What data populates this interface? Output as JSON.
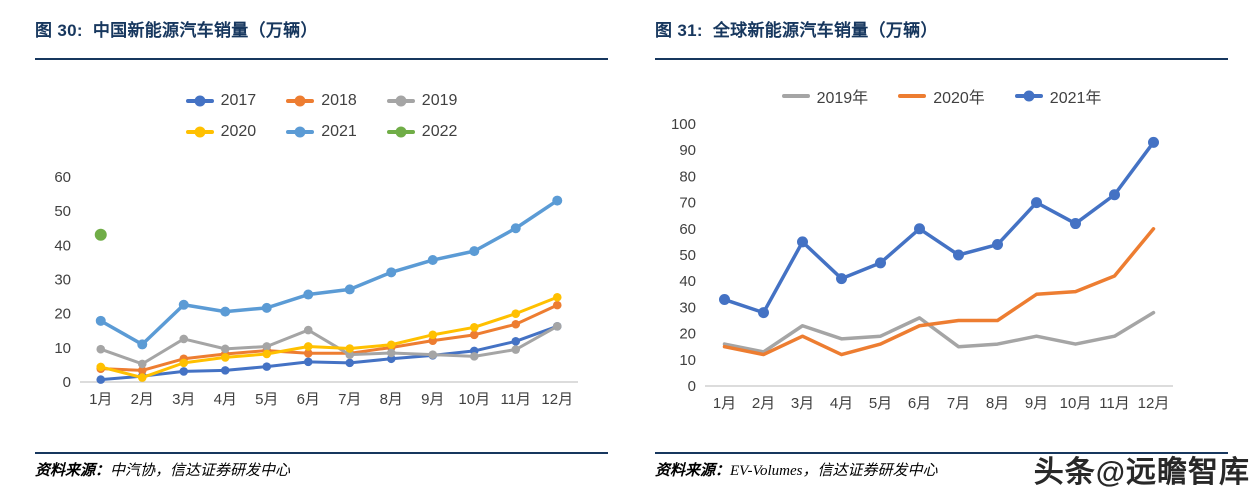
{
  "panels": [
    {
      "title": "图 30:  中国新能源汽车销量（万辆）",
      "source_prefix": "资料来源：",
      "source_text": "中汽协，信达证券研发中心"
    },
    {
      "title": "图 31:  全球新能源汽车销量（万辆）",
      "source_prefix": "资料来源：",
      "source_text": "EV-Volumes，信达证券研发中心"
    }
  ],
  "watermark": "头条@远瞻智库",
  "colors": {
    "title_navy": "#17375E",
    "axis_gray": "#C6C6C6",
    "tick_text": "#404040"
  },
  "chart_data": [
    {
      "type": "line",
      "title": "中国新能源汽车销量（万辆）",
      "categories": [
        "1月",
        "2月",
        "3月",
        "4月",
        "5月",
        "6月",
        "7月",
        "8月",
        "9月",
        "10月",
        "11月",
        "12月"
      ],
      "ylim": [
        0,
        60
      ],
      "ytick_step": 10,
      "grid": false,
      "legend_position": "top",
      "series": [
        {
          "name": "2017",
          "color": "#4472C4",
          "marker": true,
          "values": [
            0.7,
            1.7,
            3.1,
            3.4,
            4.5,
            5.9,
            5.6,
            6.8,
            7.8,
            9.1,
            11.9,
            16.3
          ]
        },
        {
          "name": "2018",
          "color": "#ED7D31",
          "marker": true,
          "values": [
            3.9,
            3.4,
            6.8,
            8.2,
            9.2,
            8.4,
            8.4,
            10.1,
            12.1,
            13.8,
            16.9,
            22.5
          ]
        },
        {
          "name": "2019",
          "color": "#A5A5A5",
          "marker": true,
          "values": [
            9.6,
            5.3,
            12.6,
            9.7,
            10.4,
            15.2,
            8.0,
            8.5,
            8.0,
            7.5,
            9.5,
            16.3
          ]
        },
        {
          "name": "2020",
          "color": "#FFC000",
          "marker": true,
          "values": [
            4.4,
            1.3,
            5.6,
            7.2,
            8.2,
            10.4,
            9.8,
            10.9,
            13.8,
            16.0,
            20.0,
            24.8
          ]
        },
        {
          "name": "2021",
          "color": "#5B9BD5",
          "marker": true,
          "line_width": 3.5,
          "marker_size": 5,
          "values": [
            17.9,
            11.0,
            22.6,
            20.6,
            21.7,
            25.6,
            27.1,
            32.1,
            35.7,
            38.3,
            45.0,
            53.1
          ]
        },
        {
          "name": "2022",
          "color": "#70AD47",
          "marker": true,
          "marker_size": 6,
          "values": [
            43.1,
            null,
            null,
            null,
            null,
            null,
            null,
            null,
            null,
            null,
            null,
            null
          ]
        }
      ]
    },
    {
      "type": "line",
      "title": "全球新能源汽车销量（万辆）",
      "categories": [
        "1月",
        "2月",
        "3月",
        "4月",
        "5月",
        "6月",
        "7月",
        "8月",
        "9月",
        "10月",
        "11月",
        "12月"
      ],
      "ylim": [
        0,
        100
      ],
      "ytick_step": 10,
      "grid": false,
      "legend_position": "top",
      "series": [
        {
          "name": "2019年",
          "color": "#A5A5A5",
          "marker": false,
          "values": [
            16,
            13,
            23,
            18,
            19,
            26,
            15,
            16,
            19,
            16,
            19,
            28
          ]
        },
        {
          "name": "2020年",
          "color": "#ED7D31",
          "marker": false,
          "values": [
            15,
            12,
            19,
            12,
            16,
            23,
            25,
            25,
            35,
            36,
            42,
            60
          ]
        },
        {
          "name": "2021年",
          "color": "#4472C4",
          "marker": true,
          "marker_size": 5.5,
          "values": [
            33,
            28,
            55,
            41,
            47,
            60,
            50,
            54,
            70,
            62,
            73,
            93
          ]
        }
      ]
    }
  ]
}
